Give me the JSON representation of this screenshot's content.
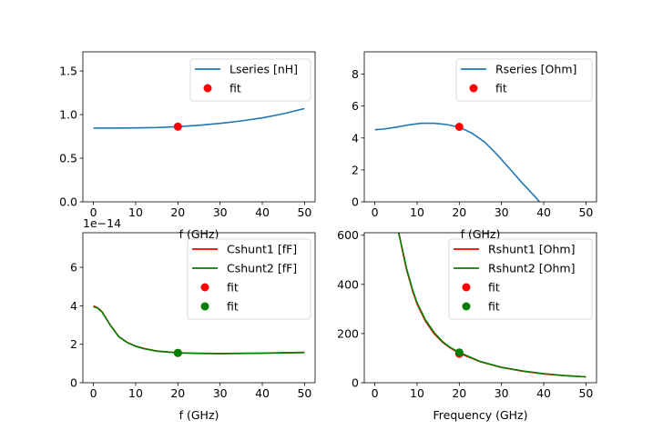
{
  "chart_data": [
    {
      "type": "line",
      "xlabel": "f (GHz)",
      "xlim": [
        -2.5,
        52.5
      ],
      "ylim": [
        0,
        1.72
      ],
      "xticks": [
        "0",
        "10",
        "20",
        "30",
        "40",
        "50"
      ],
      "yticks": [
        "0.0",
        "0.5",
        "1.0",
        "1.5"
      ],
      "ytick_values": [
        0,
        0.5,
        1.0,
        1.5
      ],
      "offset_label": "",
      "series": [
        {
          "name": "Lseries [nH]",
          "color": "#1f77b4",
          "x": [
            0,
            5,
            10,
            15,
            20,
            25,
            30,
            35,
            40,
            45,
            50
          ],
          "y": [
            0.845,
            0.845,
            0.847,
            0.852,
            0.862,
            0.878,
            0.9,
            0.928,
            0.962,
            1.01,
            1.07
          ]
        }
      ],
      "fits": [
        {
          "name": "fit",
          "color": "#ff0000",
          "x": 20,
          "y": 0.862
        }
      ]
    },
    {
      "type": "line",
      "xlabel": "f (GHz)",
      "xlim": [
        -2.5,
        52.5
      ],
      "ylim": [
        0,
        9.4
      ],
      "xticks": [
        "0",
        "10",
        "20",
        "30",
        "40",
        "50"
      ],
      "yticks": [
        "0",
        "2",
        "4",
        "6",
        "8"
      ],
      "ytick_values": [
        0,
        2,
        4,
        6,
        8
      ],
      "offset_label": "",
      "series": [
        {
          "name": "Rseries [Ohm]",
          "color": "#1f77b4",
          "x": [
            0,
            2,
            5,
            8,
            11,
            14,
            17,
            20,
            23,
            26,
            29,
            32,
            35,
            38,
            39
          ],
          "y": [
            4.52,
            4.56,
            4.68,
            4.82,
            4.92,
            4.92,
            4.84,
            4.68,
            4.3,
            3.75,
            2.95,
            2.05,
            1.15,
            0.3,
            0
          ]
        }
      ],
      "fits": [
        {
          "name": "fit",
          "color": "#ff0000",
          "x": 20,
          "y": 4.7
        }
      ]
    },
    {
      "type": "line",
      "xlabel": "f (GHz)",
      "xlim": [
        -2.5,
        52.5
      ],
      "ylim": [
        0,
        7.8e-14
      ],
      "xticks": [
        "0",
        "10",
        "20",
        "30",
        "40",
        "50"
      ],
      "yticks": [
        "0",
        "2",
        "4",
        "6"
      ],
      "ytick_values": [
        0,
        2e-14,
        4e-14,
        6e-14
      ],
      "offset_label": "1e−14",
      "series": [
        {
          "name": "Cshunt1 [fF]",
          "color": "#ff0000",
          "x": [
            0,
            1,
            2,
            3,
            4,
            5,
            6,
            8,
            10,
            12,
            15,
            20,
            25,
            30,
            40,
            50
          ],
          "y": [
            4e-14,
            3.9e-14,
            3.7e-14,
            3.35e-14,
            3e-14,
            2.7e-14,
            2.4e-14,
            2.1e-14,
            1.9e-14,
            1.78e-14,
            1.65e-14,
            1.56e-14,
            1.53e-14,
            1.52e-14,
            1.54e-14,
            1.58e-14
          ]
        },
        {
          "name": "Cshunt2 [fF]",
          "color": "#008000",
          "x": [
            0,
            1,
            2,
            3,
            4,
            5,
            6,
            8,
            10,
            12,
            15,
            20,
            25,
            30,
            40,
            50
          ],
          "y": [
            3.95e-14,
            3.88e-14,
            3.68e-14,
            3.34e-14,
            2.99e-14,
            2.69e-14,
            2.39e-14,
            2.09e-14,
            1.89e-14,
            1.77e-14,
            1.64e-14,
            1.55e-14,
            1.52e-14,
            1.51e-14,
            1.53e-14,
            1.57e-14
          ]
        }
      ],
      "fits": [
        {
          "name": "fit",
          "color": "#ff0000",
          "x": 20,
          "y": 1.55e-14
        },
        {
          "name": "fit",
          "color": "#008000",
          "x": 20,
          "y": 1.55e-14
        }
      ]
    },
    {
      "type": "line",
      "xlabel": "Frequency (GHz)",
      "xlim": [
        -2.5,
        52.5
      ],
      "ylim": [
        0,
        610
      ],
      "xticks": [
        "0",
        "10",
        "20",
        "30",
        "40",
        "50"
      ],
      "yticks": [
        "0",
        "200",
        "400",
        "600"
      ],
      "ytick_values": [
        0,
        200,
        400,
        600
      ],
      "offset_label": "",
      "series": [
        {
          "name": "Rshunt1 [Ohm]",
          "color": "#ff0000",
          "x": [
            5.7,
            6.5,
            7.5,
            9,
            10,
            12,
            14,
            16,
            18,
            20,
            25,
            30,
            35,
            40,
            45,
            50
          ],
          "y": [
            610,
            540,
            460,
            370,
            320,
            250,
            200,
            165,
            140,
            120,
            85,
            62,
            47,
            36,
            29,
            24
          ]
        },
        {
          "name": "Rshunt2 [Ohm]",
          "color": "#008000",
          "x": [
            5.6,
            6.5,
            7.5,
            9,
            10,
            12,
            14,
            16,
            18,
            20,
            25,
            30,
            35,
            40,
            45,
            50
          ],
          "y": [
            610,
            545,
            465,
            375,
            325,
            255,
            205,
            168,
            142,
            123,
            86,
            63,
            48,
            37,
            29,
            24
          ]
        }
      ],
      "fits": [
        {
          "name": "fit",
          "color": "#ff0000",
          "x": 20,
          "y": 118
        },
        {
          "name": "fit",
          "color": "#008000",
          "x": 20,
          "y": 123
        }
      ]
    }
  ]
}
